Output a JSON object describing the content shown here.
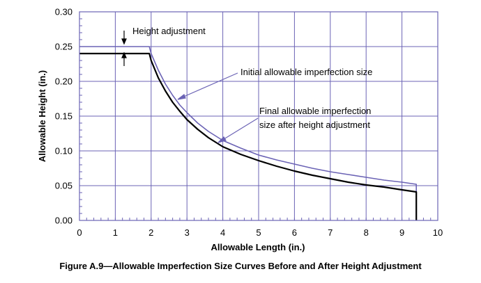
{
  "chart_data": {
    "type": "line",
    "xlabel": "Allowable Length (in.)",
    "ylabel": "Allowable Height (in.)",
    "xlim": [
      0,
      10
    ],
    "ylim": [
      0,
      0.3
    ],
    "xticks": [
      0,
      1,
      2,
      3,
      4,
      5,
      6,
      7,
      8,
      9,
      10
    ],
    "yticks": [
      "0.00",
      "0.05",
      "0.10",
      "0.15",
      "0.20",
      "0.25",
      "0.30"
    ],
    "grid": true,
    "colors": {
      "grid": "#6b63b5",
      "initial": "#6b63b5",
      "final": "#000000"
    },
    "series": [
      {
        "name": "Initial allowable imperfection size",
        "x": [
          0,
          1.95,
          2.0,
          2.2,
          2.4,
          2.6,
          2.8,
          3.0,
          3.3,
          3.6,
          4.0,
          4.5,
          5.0,
          5.5,
          6.0,
          6.5,
          7.0,
          7.5,
          8.0,
          8.5,
          9.0,
          9.4,
          9.4
        ],
        "y": [
          0.25,
          0.25,
          0.24,
          0.216,
          0.196,
          0.18,
          0.166,
          0.155,
          0.14,
          0.128,
          0.115,
          0.104,
          0.094,
          0.087,
          0.081,
          0.075,
          0.07,
          0.066,
          0.062,
          0.058,
          0.055,
          0.052,
          0.0
        ]
      },
      {
        "name": "Final allowable imperfection size after height adjustment",
        "x": [
          0,
          1.95,
          2.0,
          2.2,
          2.4,
          2.6,
          2.8,
          3.0,
          3.3,
          3.6,
          4.0,
          4.5,
          5.0,
          5.5,
          6.0,
          6.5,
          7.0,
          7.5,
          8.0,
          8.5,
          9.0,
          9.4,
          9.4
        ],
        "y": [
          0.24,
          0.24,
          0.23,
          0.205,
          0.186,
          0.17,
          0.157,
          0.145,
          0.131,
          0.119,
          0.106,
          0.095,
          0.086,
          0.078,
          0.071,
          0.065,
          0.06,
          0.055,
          0.051,
          0.048,
          0.044,
          0.041,
          0.0
        ]
      }
    ],
    "annotations": {
      "height_adjustment": "Height adjustment",
      "initial": "Initial allowable imperfection size",
      "final_line1": "Final allowable imperfection",
      "final_line2": "size after height adjustment"
    }
  },
  "caption": "Figure  A.9—Allowable Imperfection Size Curves Before and After Height Adjustment"
}
